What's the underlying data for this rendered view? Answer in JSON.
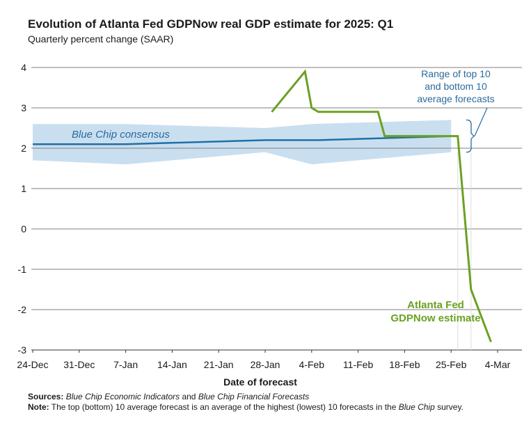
{
  "title": "Evolution of Atlanta Fed GDPNow real GDP estimate for 2025: Q1",
  "subtitle": "Quarterly percent change (SAAR)",
  "footer": {
    "sources_label": "Sources:",
    "sources_text_1": "Blue Chip Economic Indicators",
    "sources_text_2": " and ",
    "sources_text_3": "Blue Chip Financial Forecasts",
    "note_label": "Note:",
    "note_text_1": " The top (bottom) 10 average forecast is an average of the highest (lowest) 10 forecasts in the ",
    "note_text_2": "Blue Chip",
    "note_text_3": " survey."
  },
  "colors": {
    "gdpnow": "#6aa121",
    "consensus": "#1f6fa8",
    "range": "#c9dff0",
    "grid": "#7f7f7f",
    "annotation": "#2a6a9c"
  },
  "chart_data": {
    "type": "line",
    "title": "Evolution of Atlanta Fed GDPNow real GDP estimate for 2025: Q1",
    "subtitle": "Quarterly percent change (SAAR)",
    "xlabel": "Date of forecast",
    "ylabel": "",
    "x_tick_labels": [
      "24-Dec",
      "31-Dec",
      "7-Jan",
      "14-Jan",
      "21-Jan",
      "28-Jan",
      "4-Feb",
      "11-Feb",
      "18-Feb",
      "25-Feb",
      "4-Mar"
    ],
    "x_range": [
      "2024-12-24",
      "2025-03-04"
    ],
    "y_ticks": [
      4,
      3,
      2,
      1,
      0,
      -1,
      -2,
      -3
    ],
    "ylim": [
      -3,
      4
    ],
    "grid": "horizontal",
    "series": [
      {
        "name": "Atlanta Fed GDPNow estimate",
        "style": "line",
        "points": [
          {
            "x": "2025-01-29",
            "y": 2.9
          },
          {
            "x": "2025-02-03",
            "y": 3.9
          },
          {
            "x": "2025-02-04",
            "y": 3.0
          },
          {
            "x": "2025-02-05",
            "y": 2.9
          },
          {
            "x": "2025-02-13",
            "y": 2.9
          },
          {
            "x": "2025-02-14",
            "y": 2.9
          },
          {
            "x": "2025-02-15",
            "y": 2.3
          },
          {
            "x": "2025-02-26",
            "y": 2.3
          },
          {
            "x": "2025-02-28",
            "y": -1.5
          },
          {
            "x": "2025-03-03",
            "y": -2.8
          }
        ]
      },
      {
        "name": "Blue Chip consensus",
        "style": "line",
        "points": [
          {
            "x": "2024-12-24",
            "y": 2.1
          },
          {
            "x": "2025-01-07",
            "y": 2.1
          },
          {
            "x": "2025-01-28",
            "y": 2.2
          },
          {
            "x": "2025-02-05",
            "y": 2.2
          },
          {
            "x": "2025-02-25",
            "y": 2.3
          }
        ]
      },
      {
        "name": "Range of top 10 and bottom 10 average forecasts",
        "style": "band",
        "points": [
          {
            "x": "2024-12-24",
            "high": 2.6,
            "low": 1.7
          },
          {
            "x": "2025-01-07",
            "high": 2.6,
            "low": 1.6
          },
          {
            "x": "2025-01-28",
            "high": 2.5,
            "low": 1.9
          },
          {
            "x": "2025-02-04",
            "high": 2.6,
            "low": 1.6
          },
          {
            "x": "2025-02-25",
            "high": 2.7,
            "low": 1.9
          }
        ]
      }
    ],
    "annotations": {
      "consensus_label": "Blue Chip consensus",
      "range_label_lines": [
        "Range of top 10",
        "and bottom 10",
        "average forecasts"
      ],
      "gdpnow_label_lines": [
        "Atlanta Fed",
        "GDPNow estimate"
      ]
    }
  }
}
